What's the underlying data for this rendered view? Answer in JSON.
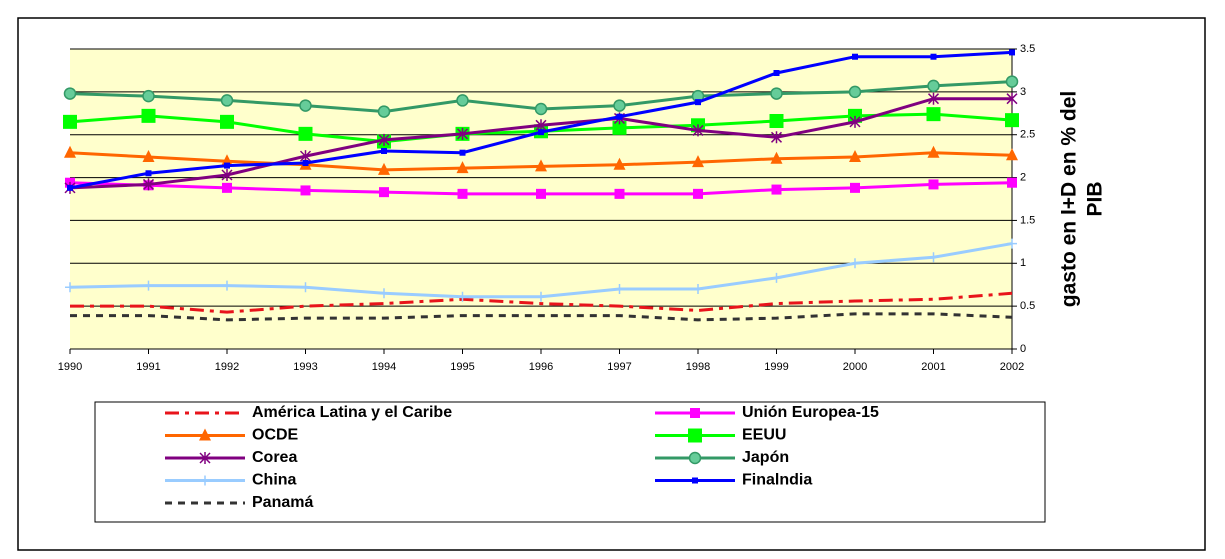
{
  "chart_data": {
    "type": "line",
    "y_label": [
      "gasto en I+D en % del",
      "PIB"
    ],
    "categories": [
      "1990",
      "1991",
      "1992",
      "1993",
      "1994",
      "1995",
      "1996",
      "1997",
      "1998",
      "1999",
      "2000",
      "2001",
      "2002"
    ],
    "ylim": [
      0,
      3.5
    ],
    "yticks": [
      0,
      0.5,
      1,
      1.5,
      2,
      2.5,
      3,
      3.5
    ],
    "grid": true,
    "series": [
      {
        "name": "América Latina y el Caribe",
        "color": "#e8141b",
        "marker": "none",
        "dash": "dashdot",
        "values": [
          0.5,
          0.5,
          0.43,
          0.5,
          0.53,
          0.58,
          0.53,
          0.5,
          0.45,
          0.53,
          0.56,
          0.58,
          0.65
        ]
      },
      {
        "name": "Unión Europea-15",
        "color": "#ff00ff",
        "marker": "square",
        "values": [
          1.94,
          1.91,
          1.88,
          1.85,
          1.83,
          1.81,
          1.81,
          1.81,
          1.81,
          1.86,
          1.88,
          1.92,
          1.94
        ]
      },
      {
        "name": "OCDE",
        "color": "#ff6600",
        "marker": "triangle",
        "values": [
          2.29,
          2.24,
          2.19,
          2.15,
          2.09,
          2.11,
          2.13,
          2.15,
          2.18,
          2.22,
          2.24,
          2.29,
          2.26
        ]
      },
      {
        "name": "EEUU",
        "color": "#00ff00",
        "marker": "bigsquare",
        "values": [
          2.65,
          2.72,
          2.65,
          2.51,
          2.42,
          2.51,
          2.54,
          2.58,
          2.61,
          2.66,
          2.72,
          2.74,
          2.67
        ]
      },
      {
        "name": "Corea",
        "color": "#800080",
        "marker": "star",
        "values": [
          1.88,
          1.92,
          2.03,
          2.25,
          2.44,
          2.51,
          2.61,
          2.69,
          2.55,
          2.47,
          2.65,
          2.92,
          2.92
        ]
      },
      {
        "name": "Japón",
        "color": "#339966",
        "marker": "circle",
        "values": [
          2.98,
          2.95,
          2.9,
          2.84,
          2.77,
          2.9,
          2.8,
          2.84,
          2.95,
          2.98,
          3.0,
          3.07,
          3.12
        ]
      },
      {
        "name": "China",
        "color": "#99ccff",
        "marker": "plus",
        "values": [
          0.72,
          0.74,
          0.74,
          0.72,
          0.65,
          0.61,
          0.61,
          0.7,
          0.7,
          0.83,
          1.0,
          1.07,
          1.23
        ]
      },
      {
        "name": "Finalndia",
        "color": "#0000ff",
        "marker": "smallsquare",
        "values": [
          1.88,
          2.05,
          2.14,
          2.17,
          2.31,
          2.29,
          2.53,
          2.71,
          2.88,
          3.22,
          3.41,
          3.41,
          3.46
        ]
      },
      {
        "name": "Panamá",
        "color": "#333333",
        "marker": "none",
        "dash": "dash",
        "values": [
          0.39,
          0.39,
          0.34,
          0.36,
          0.36,
          0.39,
          0.39,
          0.39,
          0.34,
          0.36,
          0.41,
          0.41,
          0.37
        ]
      }
    ]
  }
}
